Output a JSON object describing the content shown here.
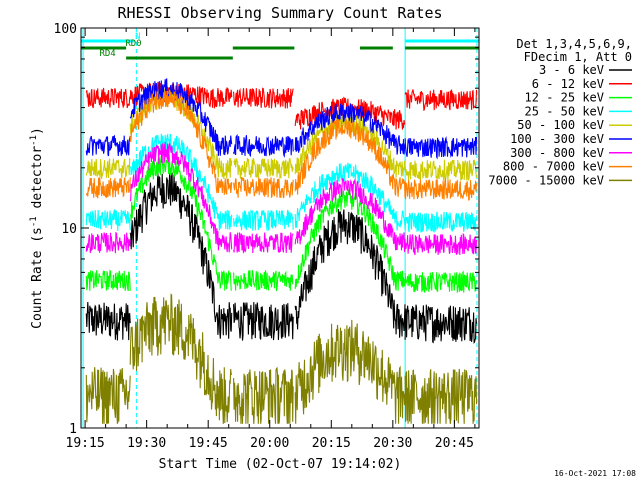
{
  "chart_data": {
    "type": "line",
    "title": "RHESSI Observing Summary Count Rates",
    "xlabel": "Start Time (02-Oct-07 19:14:02)",
    "ylabel": "Count Rate (s",
    "ylabel_sup": "-1",
    "ylabel_mid": " detector",
    "ylabel_end": ")",
    "timestamp": "16-Oct-2021 17:08",
    "y_scale": "log",
    "ylim": [
      1,
      100
    ],
    "xlim_minutes": [
      -1,
      96
    ],
    "x_ticks": [
      {
        "label": "19:15",
        "m": 0
      },
      {
        "label": "19:30",
        "m": 15
      },
      {
        "label": "19:45",
        "m": 30
      },
      {
        "label": "20:00",
        "m": 45
      },
      {
        "label": "20:15",
        "m": 60
      },
      {
        "label": "20:30",
        "m": 75
      },
      {
        "label": "20:45",
        "m": 90
      }
    ],
    "y_ticks": [
      {
        "label": "1",
        "v": 1
      },
      {
        "label": "10",
        "v": 10
      },
      {
        "label": "100",
        "v": 100
      }
    ],
    "legend_header": [
      "Det 1,3,4,5,6,9,",
      "FDecim 1, Att 0"
    ],
    "legend_position": "top-right",
    "series": [
      {
        "name": "3 - 6 keV",
        "color": "#000000",
        "base": 3.5,
        "peak": 16,
        "peak2": 10.5,
        "preset": 3.5
      },
      {
        "name": "6 - 12 keV",
        "color": "#ff0000",
        "base": 45,
        "peak": 48,
        "peak2": 40,
        "preset": 45
      },
      {
        "name": "12 - 25 keV",
        "color": "#00ff00",
        "base": 5.5,
        "peak": 21,
        "peak2": 14,
        "preset": 5.5
      },
      {
        "name": "25 - 50 keV",
        "color": "#00ffff",
        "base": 11,
        "peak": 27,
        "peak2": 19,
        "preset": 11
      },
      {
        "name": "50 - 100 keV",
        "color": "#cccc00",
        "base": 20,
        "peak": 45,
        "peak2": 34,
        "preset": 20
      },
      {
        "name": "100 - 300 keV",
        "color": "#0000ff",
        "base": 26,
        "peak": 50,
        "peak2": 38,
        "preset": 26
      },
      {
        "name": "300 - 800 keV",
        "color": "#ff00ff",
        "base": 8.5,
        "peak": 24,
        "peak2": 16,
        "preset": 8.5
      },
      {
        "name": "800 - 7000 keV",
        "color": "#ff8000",
        "base": 16,
        "peak": 45,
        "peak2": 32,
        "preset": 16
      },
      {
        "name": "7000 - 15000 keV",
        "color": "#808000",
        "base": 1.5,
        "peak": 3.5,
        "peak2": 2.6,
        "preset": 1.5
      }
    ],
    "flags": [
      {
        "label": "N",
        "color": "#00ffff",
        "segments": [
          [
            -1,
            12
          ],
          [
            78,
            96
          ]
        ]
      },
      {
        "label": "RD0",
        "color": "#008000",
        "segments": [
          [
            -1,
            10
          ],
          [
            36,
            51
          ],
          [
            67,
            75
          ],
          [
            78,
            96
          ]
        ]
      },
      {
        "label": "RD4",
        "color": "#008000",
        "segments": [
          [
            10,
            36
          ]
        ]
      }
    ],
    "verticals": [
      {
        "m": -0.5,
        "style": "solid"
      },
      {
        "m": 12.5,
        "style": "dashed"
      },
      {
        "m": 78,
        "style": "solid"
      },
      {
        "m": 95.5,
        "style": "dashed"
      }
    ]
  }
}
